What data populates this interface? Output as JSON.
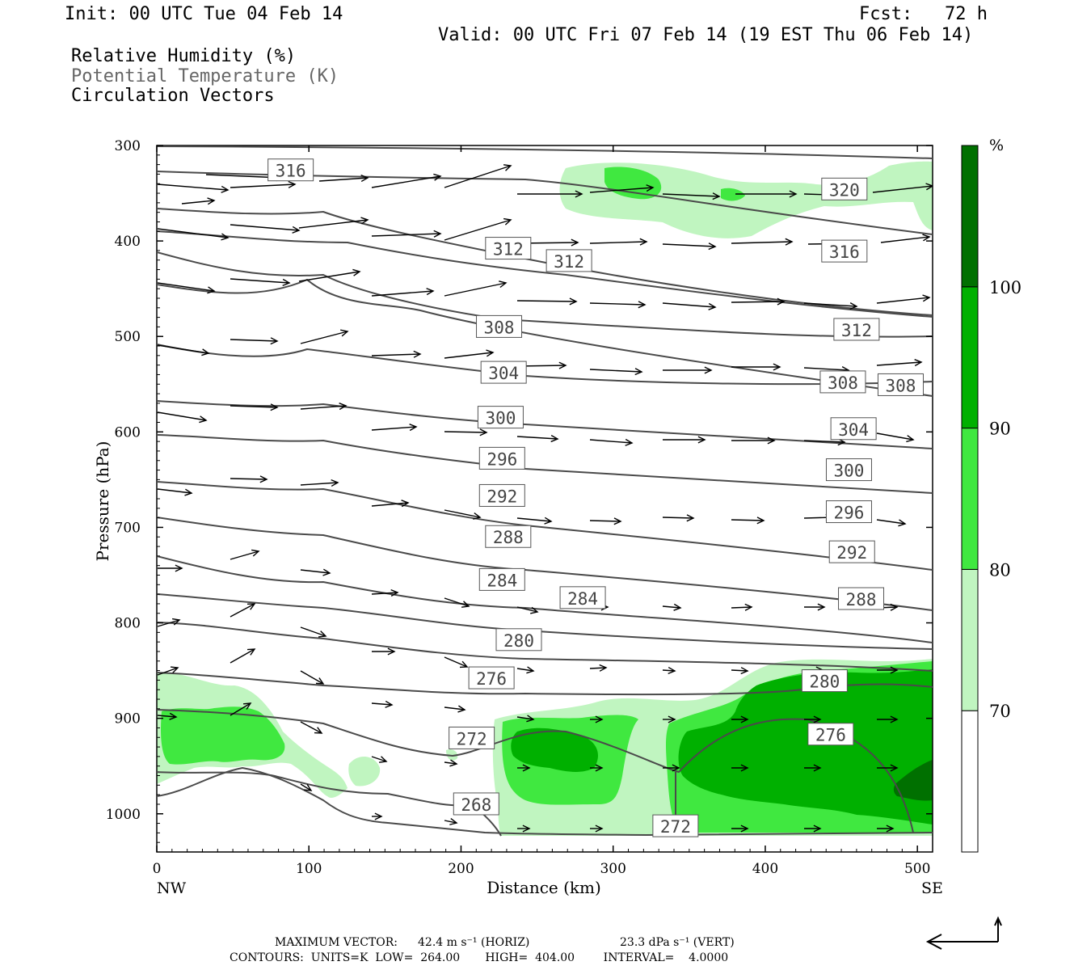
{
  "header": {
    "init": "Init: 00 UTC Tue 04 Feb 14",
    "fcst": "Fcst:   72 h",
    "valid": "Valid: 00 UTC Fri 07 Feb 14 (19 EST Thu 06 Feb 14)",
    "legend_rh": "Relative Humidity (%)",
    "legend_theta": "Potential Temperature (K)",
    "legend_circ": "Circulation Vectors"
  },
  "colorbar": {
    "unit": "%",
    "levels": [
      "70",
      "80",
      "90",
      "100"
    ],
    "colors": [
      "#ffffff",
      "#c0f5c0",
      "#40e840",
      "#00b000",
      "#007000"
    ]
  },
  "footer": {
    "max_vector_label": "MAXIMUM VECTOR:",
    "max_horiz": "42.4 m s⁻¹ (HORIZ)",
    "max_vert": "23.3 dPa s⁻¹ (VERT)",
    "contours": "CONTOURS:  UNITS=K  LOW=  264.00       HIGH=  404.00        INTERVAL=    4.0000"
  },
  "chart_data": {
    "type": "cross-section",
    "xlabel": "Distance (km)",
    "ylabel": "Pressure (hPa)",
    "xlim": [
      0,
      510
    ],
    "ylim": [
      1040,
      300
    ],
    "x_ticks": [
      0,
      100,
      200,
      300,
      400,
      500
    ],
    "y_ticks": [
      300,
      400,
      500,
      600,
      700,
      800,
      900,
      1000
    ],
    "x_end_labels": {
      "left": "NW",
      "right": "SE"
    },
    "theta_contour_labels": [
      {
        "label": "316",
        "x": 88,
        "p": 326
      },
      {
        "label": "320",
        "x": 452,
        "p": 346
      },
      {
        "label": "312",
        "x": 231,
        "p": 408
      },
      {
        "label": "312",
        "x": 271,
        "p": 421
      },
      {
        "label": "316",
        "x": 452,
        "p": 411
      },
      {
        "label": "308",
        "x": 225,
        "p": 490
      },
      {
        "label": "312",
        "x": 460,
        "p": 493
      },
      {
        "label": "304",
        "x": 228,
        "p": 538
      },
      {
        "label": "308",
        "x": 451,
        "p": 548
      },
      {
        "label": "308",
        "x": 489,
        "p": 551
      },
      {
        "label": "300",
        "x": 226,
        "p": 585
      },
      {
        "label": "304",
        "x": 458,
        "p": 597
      },
      {
        "label": "296",
        "x": 227,
        "p": 628
      },
      {
        "label": "300",
        "x": 455,
        "p": 640
      },
      {
        "label": "292",
        "x": 227,
        "p": 667
      },
      {
        "label": "296",
        "x": 455,
        "p": 684
      },
      {
        "label": "288",
        "x": 231,
        "p": 710
      },
      {
        "label": "292",
        "x": 457,
        "p": 726
      },
      {
        "label": "284",
        "x": 227,
        "p": 755
      },
      {
        "label": "284",
        "x": 280,
        "p": 774
      },
      {
        "label": "288",
        "x": 463,
        "p": 775
      },
      {
        "label": "280",
        "x": 238,
        "p": 818
      },
      {
        "label": "280",
        "x": 439,
        "p": 861
      },
      {
        "label": "276",
        "x": 220,
        "p": 858
      },
      {
        "label": "276",
        "x": 443,
        "p": 917
      },
      {
        "label": "272",
        "x": 207,
        "p": 921
      },
      {
        "label": "268",
        "x": 210,
        "p": 990
      },
      {
        "label": "272",
        "x": 341,
        "p": 1013
      }
    ]
  }
}
